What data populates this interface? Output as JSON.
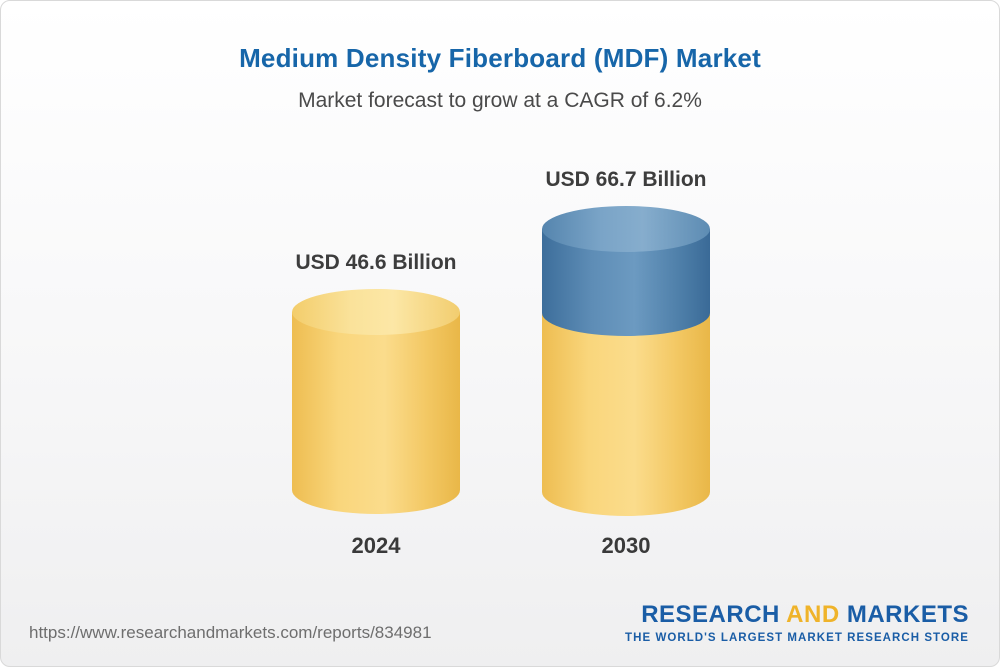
{
  "header": {
    "title": "Medium Density Fiberboard (MDF) Market",
    "subtitle": "Market forecast to grow at a CAGR of 6.2%"
  },
  "chart_data": {
    "type": "bar",
    "chart_style": "3d-cylinder",
    "title": "Medium Density Fiberboard (MDF) Market",
    "subtitle": "Market forecast to grow at a CAGR of 6.2%",
    "cagr_percent": 6.2,
    "categories": [
      "2024",
      "2030"
    ],
    "values": [
      46.6,
      66.7
    ],
    "unit": "USD Billion",
    "value_labels": [
      "USD 46.6 Billion",
      "USD 66.7 Billion"
    ],
    "series_note": "2030 cylinder shows 2024 base in yellow plus growth segment in blue",
    "colors": {
      "base_segment": "#F6CB5C",
      "growth_segment": "#4878A8",
      "title_text": "#1766A9"
    },
    "legend": "none",
    "axes": "none",
    "xlabel": "",
    "ylabel": ""
  },
  "chart": {
    "bars": [
      {
        "year": "2024",
        "value_label": "USD 46.6 Billion"
      },
      {
        "year": "2030",
        "value_label": "USD 66.7 Billion"
      }
    ]
  },
  "footer": {
    "url": "https://www.researchandmarkets.com/reports/834981",
    "logo": {
      "part1": "RESEARCH",
      "part2": "AND",
      "part3": "MARKETS",
      "tagline": "THE WORLD'S LARGEST MARKET RESEARCH STORE"
    }
  }
}
